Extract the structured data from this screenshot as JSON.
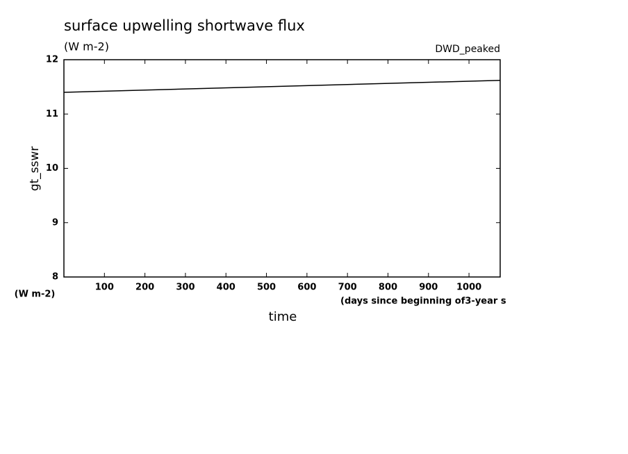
{
  "chart_data": {
    "type": "line",
    "title": "surface upwelling shortwave flux",
    "subtitle": "(W m-2)",
    "annotation": "DWD_peaked",
    "y_label": "gt_sswr",
    "y_unit": "(W m-2)",
    "x_unit": "(days since beginning of3-year s",
    "x_label": "time",
    "x": [
      0,
      1077
    ],
    "series": [
      {
        "color": "#000000",
        "values": [
          11.4,
          11.62
        ]
      }
    ],
    "xlim": [
      0,
      1077
    ],
    "xticks": [
      100,
      200,
      300,
      400,
      500,
      600,
      700,
      800,
      900,
      1000
    ],
    "ylim": [
      8,
      12
    ],
    "yticks": [
      8,
      9,
      10,
      11,
      12
    ],
    "grid": false
  }
}
